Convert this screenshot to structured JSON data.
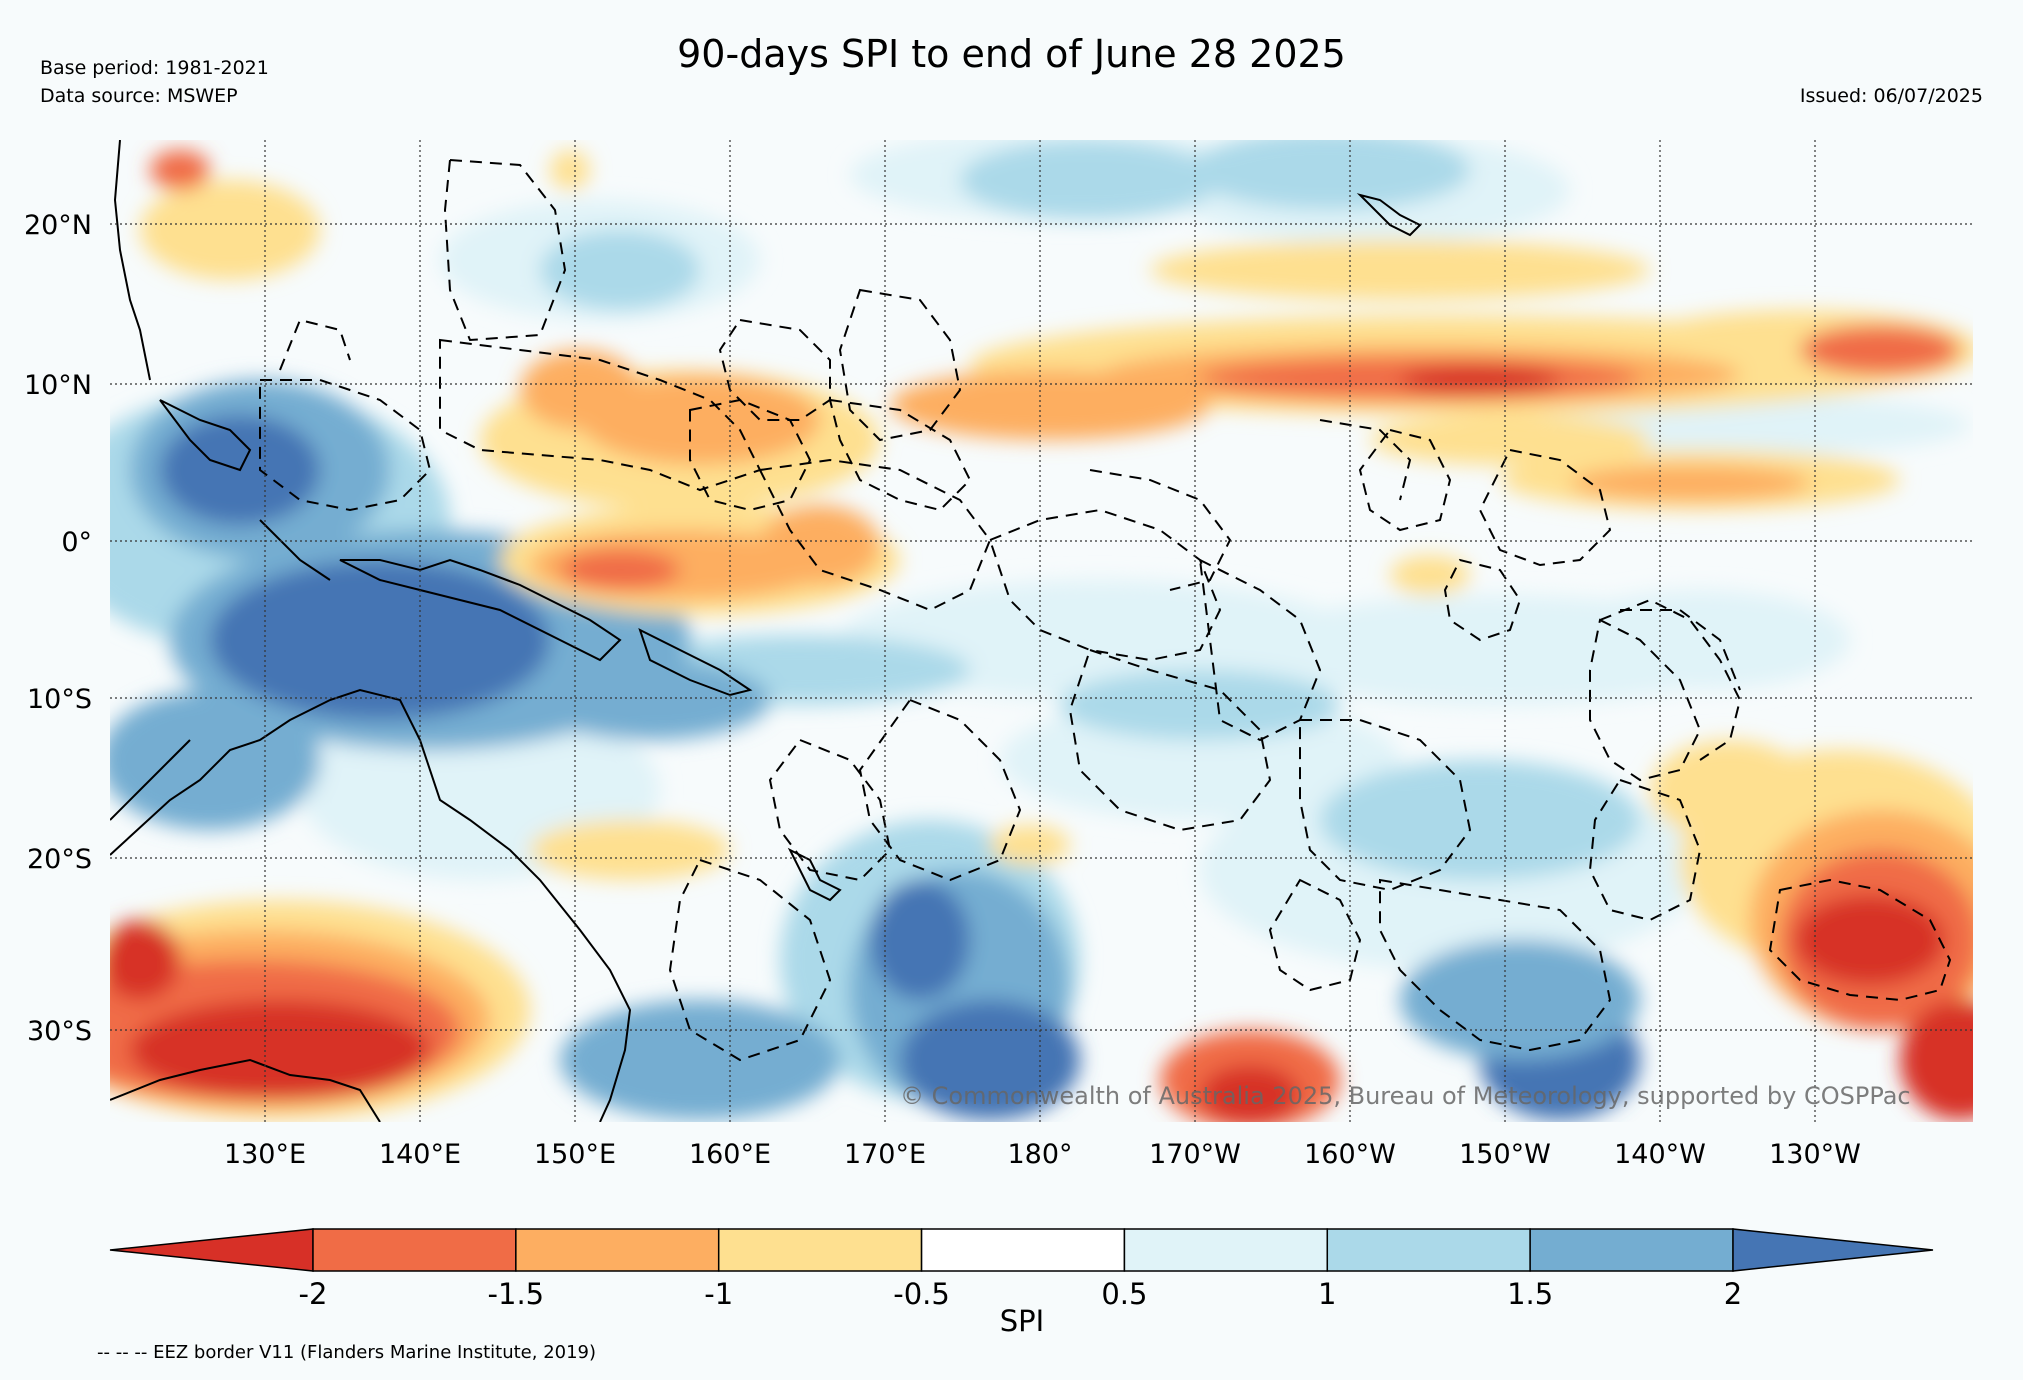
{
  "header": {
    "title": "90-days SPI to end of June 28 2025",
    "base_period": "Base period: 1981-2021",
    "data_source": "Data source: MSWEP",
    "issued": "Issued: 06/07/2025"
  },
  "map": {
    "lat_labels": [
      "20°N",
      "10°N",
      "0°",
      "10°S",
      "20°S",
      "30°S"
    ],
    "lon_labels": [
      "130°E",
      "140°E",
      "150°E",
      "160°E",
      "170°E",
      "180°",
      "170°W",
      "160°W",
      "150°W",
      "140°W",
      "130°W"
    ],
    "copyright": "© Commonwealth of Australia 2025, Bureau of Meteorology, supported by COSPPac"
  },
  "colorbar": {
    "label": "SPI",
    "ticks": [
      "-2",
      "-1.5",
      "-1",
      "-0.5",
      "0.5",
      "1",
      "1.5",
      "2"
    ],
    "colors": [
      "#d73027",
      "#f06c46",
      "#fdae61",
      "#fee090",
      "#ffffff",
      "#e0f3f8",
      "#abd9e9",
      "#74add1",
      "#4575b4"
    ]
  },
  "footnote": "-- -- -- EEZ border V11 (Flanders Marine Institute, 2019)"
}
